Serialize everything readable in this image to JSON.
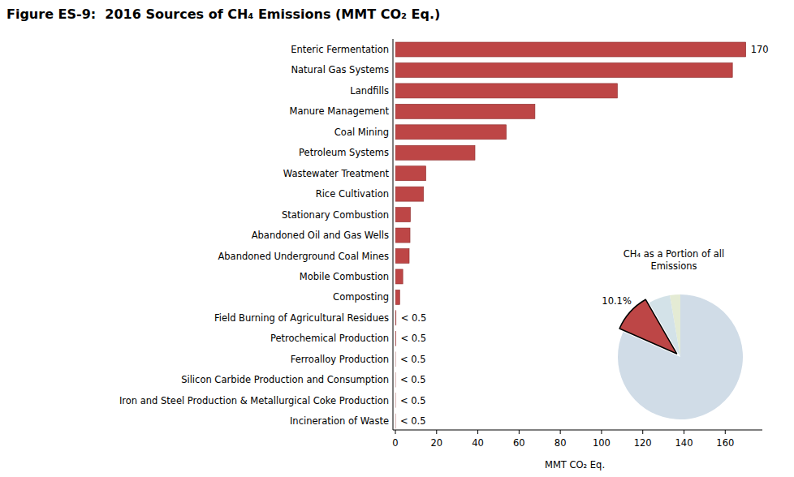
{
  "chart_data": [
    {
      "type": "bar",
      "title": "Figure ES-9:  2016 Sources of CH₄ Emissions (MMT CO₂ Eq.)",
      "orientation": "horizontal",
      "categories": [
        "Enteric Fermentation",
        "Natural Gas Systems",
        "Landfills",
        "Manure Management",
        "Coal Mining",
        "Petroleum Systems",
        "Wastewater Treatment",
        "Rice Cultivation",
        "Stationary Combustion",
        "Abandoned Oil and Gas Wells",
        "Abandoned Underground Coal Mines",
        "Mobile Combustion",
        "Composting",
        "Field Burning of Agricultural Residues",
        "Petrochemical Production",
        "Ferroalloy Production",
        "Silicon Carbide Production and Consumption",
        "Iron and Steel Production & Metallurgical Coke Production",
        "Incineration of Waste"
      ],
      "values": [
        170,
        163.5,
        107.7,
        67.7,
        53.8,
        38.6,
        14.8,
        13.7,
        7.3,
        7.1,
        6.7,
        3.6,
        2.1,
        0.3,
        0.2,
        0.01,
        0.01,
        0.01,
        0.01
      ],
      "data_labels": true,
      "value_labels": [
        "170",
        null,
        null,
        null,
        null,
        null,
        null,
        null,
        null,
        null,
        null,
        null,
        null,
        "< 0.5",
        "< 0.5",
        "< 0.5",
        "< 0.5",
        "< 0.5",
        "< 0.5"
      ],
      "color": "#bd4646",
      "xlabel": "MMT CO₂ Eq.",
      "xlim": [
        0,
        178
      ],
      "xticks": [
        0,
        20,
        40,
        60,
        80,
        100,
        120,
        140,
        160
      ],
      "grid": false
    },
    {
      "type": "pie",
      "title": "CH₄ as a Portion of all Emissions",
      "categories": [
        null,
        null,
        null,
        null
      ],
      "values": [
        2.7,
        5.6,
        10.1,
        81.6
      ],
      "colors": [
        "#e4ebd4",
        "#d3e2e8",
        "#bd4646",
        "#d0dce7"
      ],
      "data_labels": true,
      "value_labels": [
        null,
        null,
        "10.1%",
        null
      ]
    }
  ]
}
